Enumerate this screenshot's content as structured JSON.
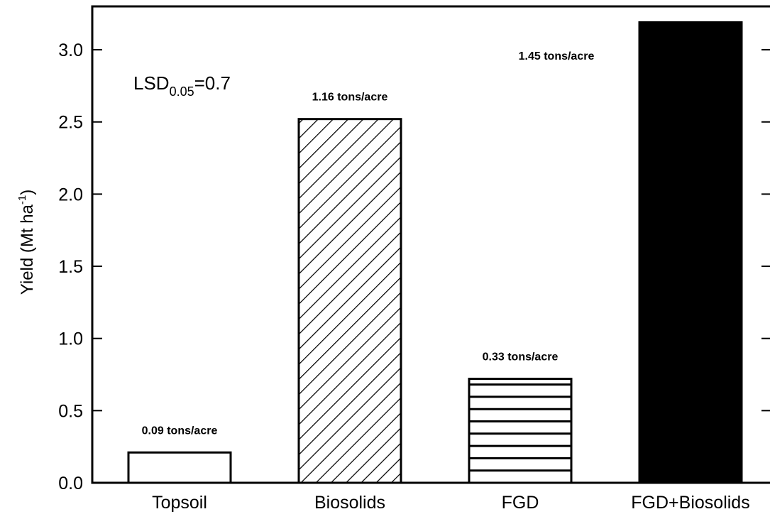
{
  "chart_data": {
    "type": "bar",
    "categories": [
      "Topsoil",
      "Biosolids",
      "FGD",
      "FGD+Biosolids"
    ],
    "values": [
      0.21,
      2.52,
      0.72,
      3.19
    ],
    "bar_labels": [
      "0.09 tons/acre",
      "1.16 tons/acre",
      "0.33 tons/acre",
      "1.45 tons/acre"
    ],
    "bar_fills": [
      "empty",
      "diagonal-hatch",
      "horizontal-hatch",
      "solid-black"
    ],
    "ylabel": {
      "main": "Yield (Mt ha",
      "superscript": "-1",
      "close": ")"
    },
    "annotation": {
      "main": "LSD",
      "subscript": "0.05",
      "rest": "=0.7"
    },
    "yticks": [
      "0.0",
      "0.5",
      "1.0",
      "1.5",
      "2.0",
      "2.5",
      "3.0"
    ],
    "ytick_values": [
      0,
      0.5,
      1.0,
      1.5,
      2.0,
      2.5,
      3.0
    ],
    "ylim": [
      0,
      3.3
    ],
    "grid": false,
    "colors": {
      "bar_stroke": "#000000",
      "solid_fill": "#000000",
      "background": "#ffffff"
    }
  }
}
